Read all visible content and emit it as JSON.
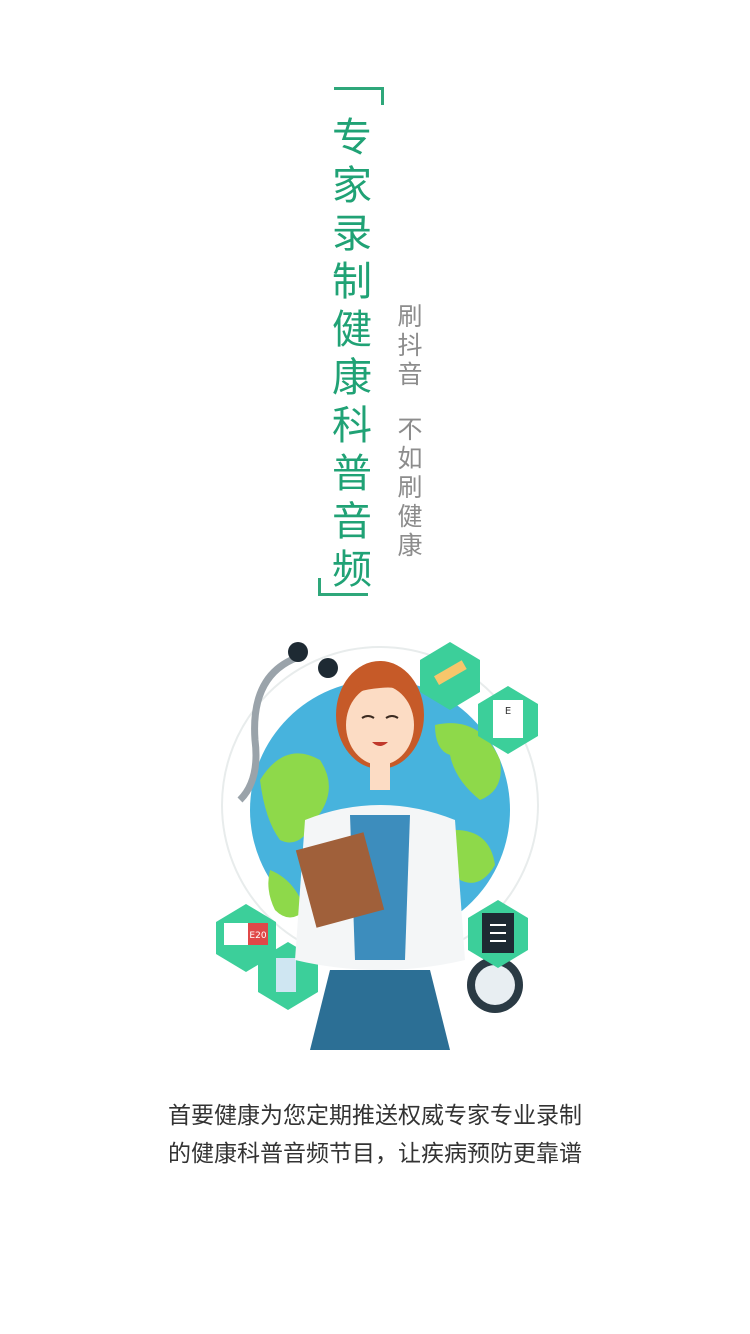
{
  "title": {
    "main": "专家录制健康科普音频"
  },
  "slogan": {
    "line1": "刷抖音",
    "line2": "不如刷健康"
  },
  "description": {
    "line1": "首要健康为您定期推送权威专家专业录制",
    "line2": "的健康科普音频节目，让疾病预防更靠谱"
  },
  "illustration": {
    "ambulance_text": "E20"
  },
  "colors": {
    "accent": "#20a275",
    "slogan": "#8c8c8c",
    "text": "#333333"
  },
  "icons": [
    "stethoscope-icon",
    "globe-icon",
    "doctor-avatar-icon",
    "syringe-icon",
    "eye-chart-icon",
    "xray-icon",
    "ambulance-icon",
    "hand-icon",
    "medicine-box-icon",
    "clipboard-icon"
  ]
}
